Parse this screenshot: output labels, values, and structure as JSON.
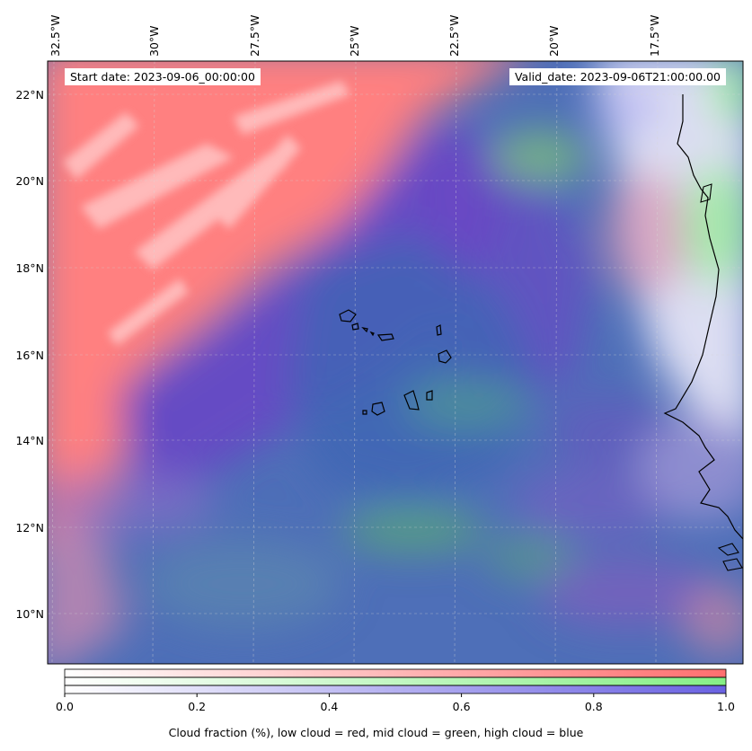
{
  "info": {
    "start_date": "Start date: 2023-09-06_00:00:00",
    "valid_date": "Valid_date: 2023-09-06T21:00:00.00"
  },
  "axes": {
    "lon_labels": [
      "32.5°W",
      "30°W",
      "27.5°W",
      "25°W",
      "22.5°W",
      "20°W",
      "17.5°W"
    ],
    "lat_labels": [
      "22°N",
      "20°N",
      "18°N",
      "16°N",
      "14°N",
      "12°N",
      "10°N"
    ]
  },
  "colorbar": {
    "tick_labels": [
      "0.0",
      "0.2",
      "0.4",
      "0.6",
      "0.8",
      "1.0"
    ],
    "label": "Cloud fraction (%), low cloud = red, mid cloud = green, high cloud = blue",
    "low_color": "#ff8080",
    "mid_color": "#90ee90",
    "high_color": "#7b6fe6"
  },
  "map_colors": {
    "low": "#ff8080",
    "mid": "#66cc66",
    "high": "#4a5fbf",
    "high_dense": "#6a40c8",
    "coast": "#000000"
  },
  "icons": [
    "coastline-africa",
    "cape-verde-islands"
  ]
}
